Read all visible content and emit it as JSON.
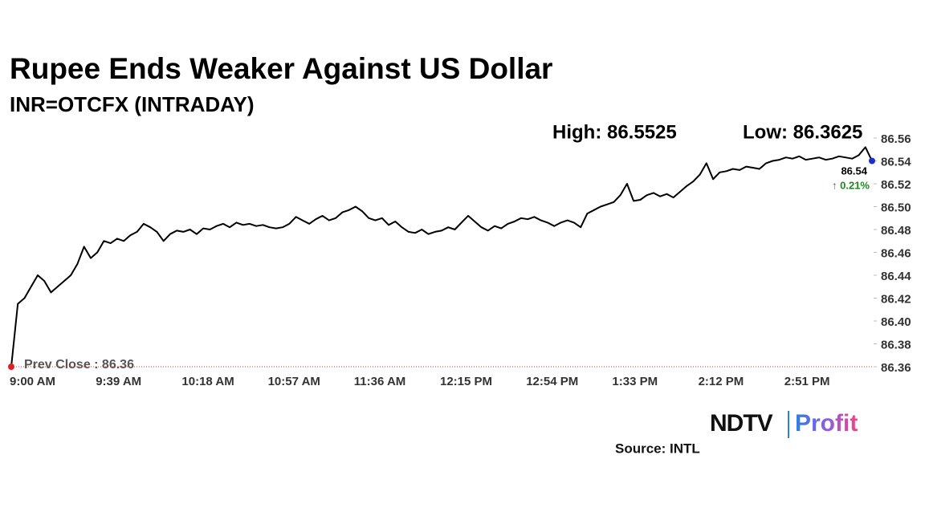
{
  "chart_data": {
    "type": "line",
    "title": "Rupee Ends Weaker Against US Dollar",
    "subtitle": "INR=OTCFX (INTRADAY)",
    "high_label": "High: 86.5525",
    "low_label": "Low: 86.3625",
    "prev_close": 86.36,
    "prev_close_label": "Prev Close : 86.36",
    "last_label": "86.54",
    "change_label": "↑ 0.21%",
    "source": "Source: INTL",
    "brand": "NDTV",
    "brand_sub": "Profit",
    "color": "#000000",
    "categories": [
      "9:00 AM",
      null,
      null,
      null,
      null,
      null,
      null,
      null,
      null,
      null,
      null,
      null,
      null,
      "9:39 AM",
      null,
      null,
      null,
      null,
      null,
      null,
      null,
      null,
      null,
      null,
      null,
      null,
      "10:18 AM",
      null,
      null,
      null,
      null,
      null,
      null,
      null,
      null,
      null,
      null,
      null,
      null,
      "10:57 AM",
      null,
      null,
      null,
      null,
      null,
      null,
      null,
      null,
      null,
      null,
      null,
      null,
      "11:36 AM",
      null,
      null,
      null,
      null,
      null,
      null,
      null,
      null,
      null,
      null,
      null,
      null,
      "12:15 PM",
      null,
      null,
      null,
      null,
      null,
      null,
      null,
      null,
      null,
      null,
      null,
      null,
      "12:54 PM",
      null,
      null,
      null,
      null,
      null,
      null,
      null,
      null,
      null,
      null,
      null,
      null,
      "1:33 PM",
      null,
      null,
      null,
      null,
      null,
      null,
      null,
      null,
      null,
      null,
      null,
      null,
      "2:12 PM",
      null,
      null,
      null,
      null,
      null,
      null,
      null,
      null,
      null,
      null,
      null,
      null,
      "2:51 PM",
      null,
      null,
      null,
      null,
      null,
      null,
      null,
      null,
      null,
      null,
      null,
      null,
      null
    ],
    "values": [
      86.36,
      86.415,
      86.42,
      86.43,
      86.44,
      86.435,
      86.425,
      86.43,
      86.435,
      86.44,
      86.45,
      86.465,
      86.455,
      86.46,
      86.47,
      86.468,
      86.472,
      86.47,
      86.475,
      86.478,
      86.485,
      86.482,
      86.478,
      86.47,
      86.476,
      86.479,
      86.478,
      86.48,
      86.476,
      86.481,
      86.48,
      86.483,
      86.485,
      86.482,
      86.486,
      86.484,
      86.485,
      86.483,
      86.484,
      86.482,
      86.481,
      86.482,
      86.485,
      86.491,
      86.488,
      86.485,
      86.489,
      86.492,
      86.488,
      86.49,
      86.495,
      86.497,
      86.5,
      86.496,
      86.49,
      86.488,
      86.49,
      86.484,
      86.487,
      86.482,
      86.478,
      86.477,
      86.48,
      86.476,
      86.478,
      86.479,
      86.482,
      86.48,
      86.486,
      86.492,
      86.487,
      86.482,
      86.479,
      86.483,
      86.481,
      86.485,
      86.487,
      86.49,
      86.489,
      86.491,
      86.488,
      86.486,
      86.483,
      86.486,
      86.488,
      86.486,
      86.482,
      86.494,
      86.497,
      86.5,
      86.502,
      86.504,
      86.51,
      86.52,
      86.505,
      86.506,
      86.51,
      86.512,
      86.509,
      86.511,
      86.508,
      86.513,
      86.518,
      86.522,
      86.528,
      86.538,
      86.524,
      86.53,
      86.531,
      86.533,
      86.532,
      86.535,
      86.534,
      86.533,
      86.538,
      86.54,
      86.541,
      86.543,
      86.542,
      86.544,
      86.541,
      86.542,
      86.543,
      86.541,
      86.542,
      86.544,
      86.543,
      86.542,
      86.545,
      86.552,
      86.54
    ],
    "ylim": [
      86.36,
      86.56
    ],
    "yticks": [
      86.36,
      86.38,
      {
        "value": 86.4,
        "label": "86.40"
      },
      86.42,
      86.44,
      86.46,
      86.48,
      {
        "value": 86.5,
        "label": "86.50"
      },
      86.52,
      86.54,
      86.56
    ]
  }
}
